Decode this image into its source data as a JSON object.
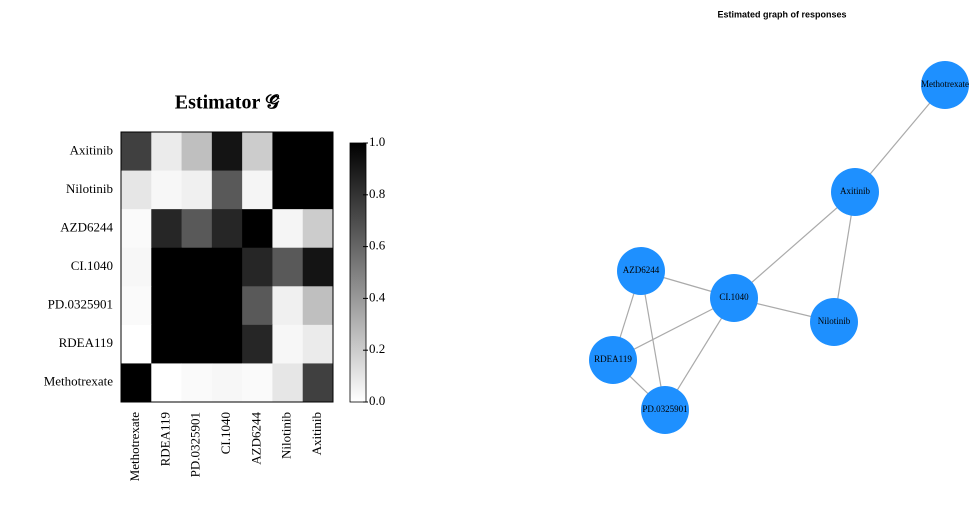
{
  "chart_data": [
    {
      "type": "heatmap",
      "title": "Estimator 𝒢̂",
      "rows": [
        "Axitinib",
        "Nilotinib",
        "AZD6244",
        "CI.1040",
        "PD.0325901",
        "RDEA119",
        "Methotrexate"
      ],
      "columns": [
        "Methotrexate",
        "RDEA119",
        "PD.0325901",
        "CI.1040",
        "AZD6244",
        "Nilotinib",
        "Axitinib"
      ],
      "values": [
        [
          0.75,
          0.08,
          0.25,
          0.92,
          0.2,
          1.0,
          1.0
        ],
        [
          0.1,
          0.03,
          0.06,
          0.65,
          0.04,
          1.0,
          1.0
        ],
        [
          0.02,
          0.85,
          0.65,
          0.85,
          1.0,
          0.04,
          0.2
        ],
        [
          0.03,
          1.0,
          1.0,
          1.0,
          0.85,
          0.65,
          0.92
        ],
        [
          0.02,
          1.0,
          1.0,
          1.0,
          0.65,
          0.06,
          0.25
        ],
        [
          0.0,
          1.0,
          1.0,
          1.0,
          0.85,
          0.03,
          0.08
        ],
        [
          1.0,
          0.0,
          0.02,
          0.03,
          0.02,
          0.1,
          0.75
        ]
      ],
      "colormap": [
        "#ffffff",
        "#000000"
      ],
      "zlim": [
        0,
        1
      ],
      "zticks": [
        {
          "value": 0,
          "label": "0.0"
        },
        0.2,
        0.4,
        0.6,
        0.8,
        {
          "value": 1,
          "label": "1.0"
        }
      ]
    },
    {
      "type": "network",
      "title": "Estimated graph of responses",
      "nodes": [
        "Methotrexate",
        "Axitinib",
        "AZD6244",
        "CI.1040",
        "Nilotinib",
        "RDEA119",
        "PD.0325901"
      ],
      "edges": [
        [
          0,
          1
        ],
        [
          1,
          3
        ],
        [
          1,
          4
        ],
        [
          3,
          4
        ],
        [
          2,
          3
        ],
        [
          2,
          5
        ],
        [
          2,
          6
        ],
        [
          3,
          5
        ],
        [
          3,
          6
        ],
        [
          5,
          6
        ]
      ],
      "node_color": "#1e90ff",
      "edge_color": "#aaaaaa"
    }
  ]
}
